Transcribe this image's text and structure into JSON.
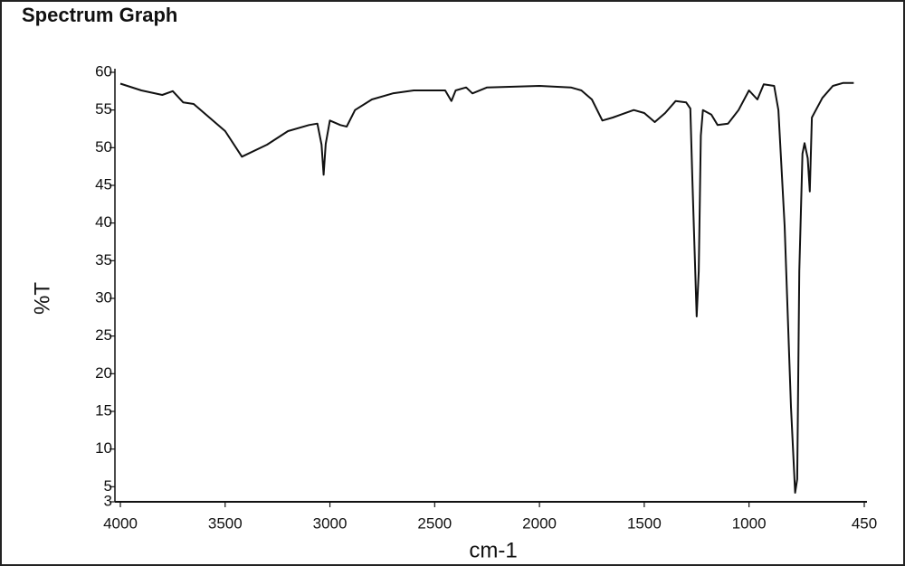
{
  "chart_data": {
    "type": "line",
    "title": "Spectrum Graph",
    "x_label": "cm-1",
    "y_label": "%T",
    "xlim": [
      4000,
      450
    ],
    "ylim": [
      3,
      60
    ],
    "xticks": [
      4000,
      3500,
      3000,
      2500,
      2000,
      1500,
      1000,
      450
    ],
    "yticks": [
      3,
      5,
      10,
      15,
      20,
      25,
      30,
      35,
      40,
      45,
      50,
      55,
      60
    ],
    "grid": false,
    "series": [
      {
        "color": "#111111",
        "x": [
          4000,
          3900,
          3800,
          3750,
          3700,
          3650,
          3600,
          3500,
          3420,
          3300,
          3200,
          3100,
          3060,
          3040,
          3030,
          3020,
          3000,
          2950,
          2920,
          2880,
          2800,
          2700,
          2600,
          2450,
          2420,
          2400,
          2350,
          2320,
          2250,
          2000,
          1850,
          1800,
          1750,
          1700,
          1650,
          1600,
          1550,
          1500,
          1450,
          1400,
          1350,
          1300,
          1280,
          1270,
          1250,
          1240,
          1230,
          1220,
          1180,
          1150,
          1100,
          1050,
          1000,
          960,
          930,
          880,
          860,
          830,
          800,
          780,
          770,
          760,
          745,
          735,
          720,
          710,
          700,
          650,
          600,
          550,
          500
        ],
        "values": [
          58.5,
          57.6,
          57,
          57.5,
          56,
          55.8,
          54.6,
          52.2,
          48.8,
          50.4,
          52.2,
          53,
          53.2,
          50.4,
          46.4,
          50.5,
          53.6,
          53,
          52.8,
          55,
          56.4,
          57.2,
          57.6,
          57.6,
          56.2,
          57.6,
          58,
          57.2,
          58,
          58.2,
          58,
          57.6,
          56.4,
          53.6,
          54,
          54.5,
          55,
          54.6,
          53.4,
          54.6,
          56.2,
          56,
          55.2,
          45.6,
          27.6,
          33.6,
          51.6,
          55,
          54.4,
          53,
          53.2,
          55,
          57.6,
          56.4,
          58.4,
          58.2,
          55,
          39.6,
          15.6,
          4.2,
          6,
          33.6,
          49.2,
          50.6,
          48.6,
          44.2,
          54,
          56.6,
          58.2,
          58.6,
          58.6
        ]
      }
    ]
  }
}
